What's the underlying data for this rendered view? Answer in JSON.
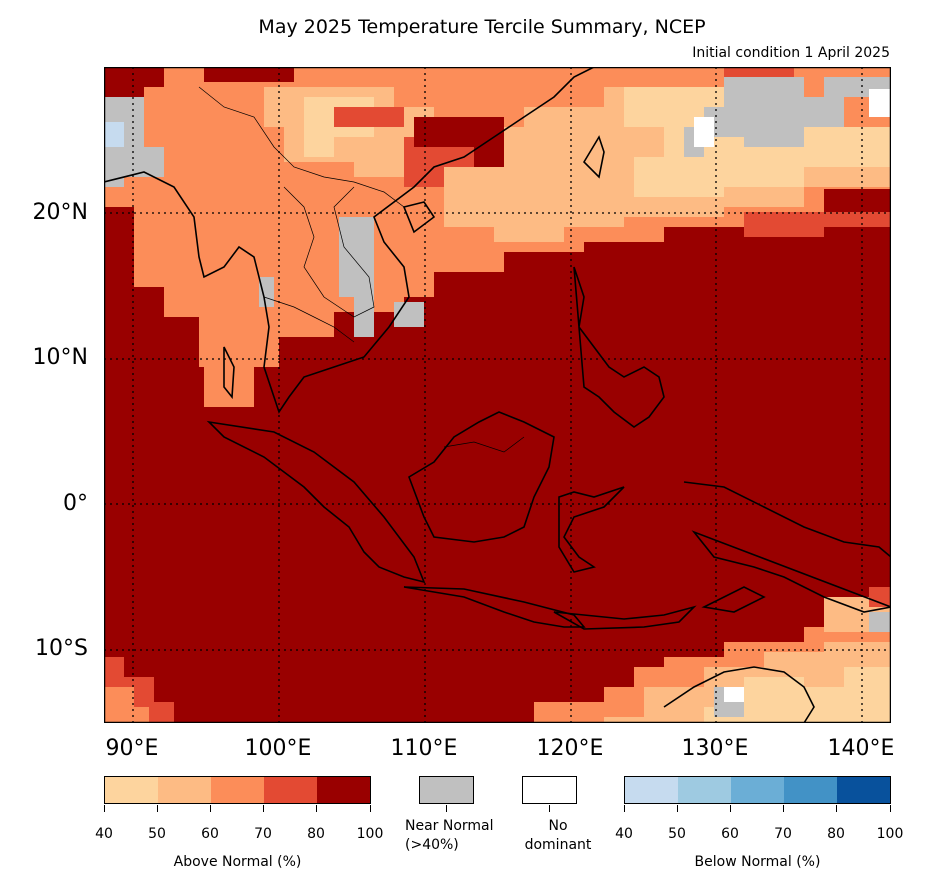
{
  "title": "May 2025 Temperature Tercile Summary, NCEP",
  "subtitle": "Initial condition 1 April 2025",
  "map": {
    "lat_labels": [
      "20°N",
      "10°N",
      "0°",
      "10°S"
    ],
    "lon_labels": [
      "90°E",
      "100°E",
      "110°E",
      "120°E",
      "130°E",
      "140°E"
    ],
    "extent": {
      "lon": [
        88,
        142
      ],
      "lat": [
        -15,
        30
      ]
    },
    "colors": {
      "above_40": "#fdd49e",
      "above_50": "#fdbb84",
      "above_60": "#fc8d59",
      "above_70": "#e34a33",
      "above_80": "#990000",
      "near_normal": "#c0c0c0",
      "no_dominant": "#ffffff"
    }
  },
  "legend": {
    "above": {
      "title": "Above Normal (%)",
      "ticks": [
        "40",
        "50",
        "60",
        "70",
        "80",
        "100"
      ],
      "colors": [
        "#fdd49e",
        "#fdbb84",
        "#fc8d59",
        "#e34a33",
        "#990000"
      ]
    },
    "near_normal": {
      "label_line1": "Near Normal",
      "label_line2": "(>40%)",
      "color": "#c0c0c0"
    },
    "no_dominant": {
      "label_line1": "No",
      "label_line2": "dominant",
      "color": "#ffffff"
    },
    "below": {
      "title": "Below Normal (%)",
      "ticks": [
        "40",
        "50",
        "60",
        "70",
        "80",
        "100"
      ],
      "colors": [
        "#c6dbef",
        "#9ecae1",
        "#6baed6",
        "#4292c6",
        "#08519c"
      ]
    }
  }
}
